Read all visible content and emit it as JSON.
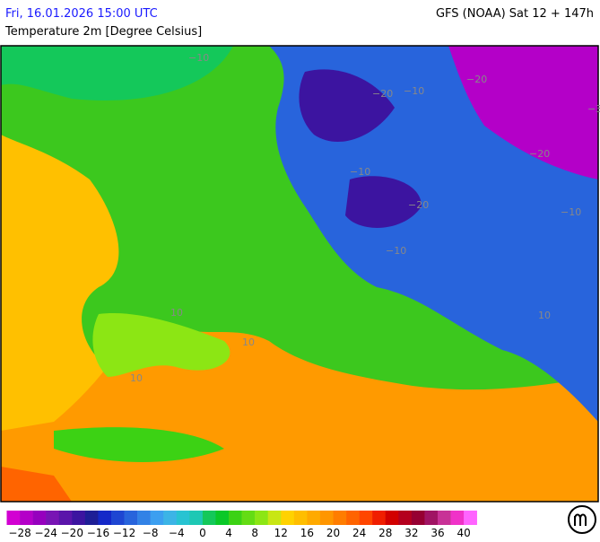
{
  "header": {
    "datetime": "Fri, 16.01.2026 15:00 UTC",
    "model": "GFS (NOAA) Sat 12 + 147h",
    "variable": "Temperature 2m [Degree Celsius]"
  },
  "map": {
    "labels": [
      "−10",
      "−20",
      "−10",
      "−20",
      "−30",
      "−20",
      "−10",
      "−10",
      "−20",
      "−10",
      "10",
      "10",
      "10",
      "10"
    ]
  },
  "legend": {
    "labels": [
      "−28",
      "−24",
      "−20",
      "−16",
      "−12",
      "−8",
      "−4",
      "0",
      "4",
      "8",
      "12",
      "16",
      "20",
      "24",
      "28",
      "32",
      "36",
      "40"
    ],
    "colors": [
      "#d200d2",
      "#b400c8",
      "#9600be",
      "#7814b4",
      "#5a14aa",
      "#3c14a0",
      "#1e1e96",
      "#1428c8",
      "#1e46d2",
      "#2864dc",
      "#3282e6",
      "#3c9ff0",
      "#3cb4e6",
      "#28c3d2",
      "#1ec8b4",
      "#14c85a",
      "#0ac828",
      "#3cd214",
      "#64dc14",
      "#8ce614",
      "#c8e614",
      "#ffd200",
      "#ffbe00",
      "#ffaa00",
      "#ff9600",
      "#ff7d00",
      "#ff6400",
      "#ff4600",
      "#f01e00",
      "#d20000",
      "#b4001e",
      "#960032",
      "#a01464",
      "#c83296",
      "#f032c8",
      "#ff64ff"
    ]
  }
}
